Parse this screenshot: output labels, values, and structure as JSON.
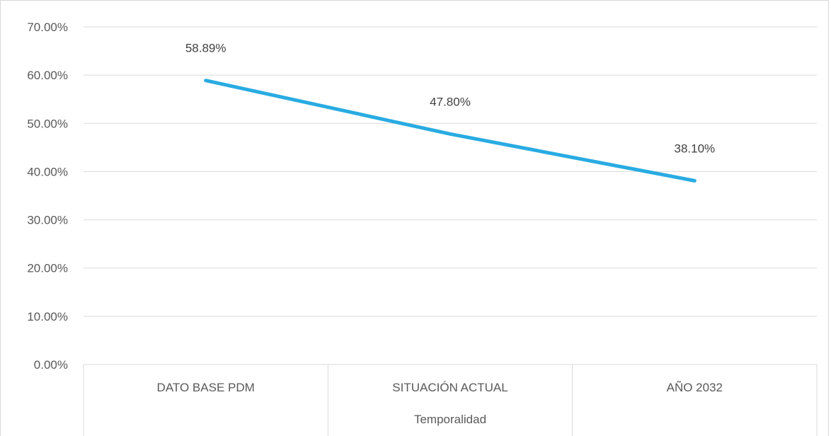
{
  "chart_data": {
    "type": "line",
    "title": "",
    "xlabel": "Temporalidad",
    "ylabel": "",
    "categories": [
      "DATO BASE PDM",
      "SITUACIÓN ACTUAL",
      "AÑO 2032"
    ],
    "series": [
      {
        "values": [
          0.5889,
          0.478,
          0.381
        ],
        "data_labels": [
          "58.89%",
          "47.80%",
          "38.10%"
        ],
        "color": "#29ABE2"
      }
    ],
    "ylim": [
      0,
      0.7
    ],
    "yticks": [
      0,
      0.1,
      0.2,
      0.3,
      0.4,
      0.5,
      0.6,
      0.7
    ],
    "ytick_labels": [
      "0.00%",
      "10.00%",
      "20.00%",
      "30.00%",
      "40.00%",
      "50.00%",
      "60.00%",
      "70.00%"
    ],
    "grid": true,
    "legend": "none",
    "colors": {
      "gridline": "#D9D9D9",
      "axis": "#D9D9D9",
      "border": "#D9D9D9",
      "text": "#595959"
    }
  }
}
